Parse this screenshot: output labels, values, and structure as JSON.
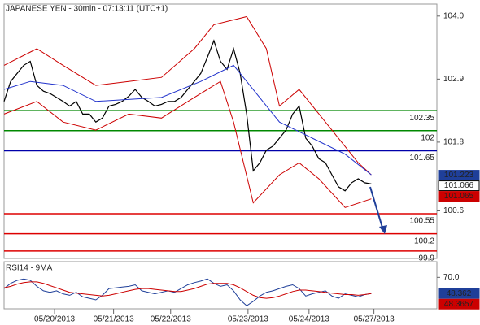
{
  "chart_data": [
    {
      "type": "line",
      "title": "JAPANESE YEN - 30min - 07:13:11 (UTC+1)",
      "x": [
        0,
        1,
        2,
        3,
        4,
        5,
        6,
        7,
        8,
        9,
        10,
        11,
        12,
        13,
        14,
        15,
        16,
        17,
        18,
        19,
        20,
        21,
        22,
        23,
        24,
        25,
        26,
        27,
        28,
        29,
        30,
        31,
        32,
        33,
        34,
        35,
        36,
        37,
        38,
        39,
        40,
        41,
        42,
        43,
        44,
        45,
        46,
        47,
        48,
        49,
        50,
        51,
        52,
        53,
        54,
        55,
        56
      ],
      "xlim": [
        0,
        66
      ],
      "xticks": [
        {
          "value": 7.7,
          "label": "05/20/2013"
        },
        {
          "value": 16.7,
          "label": "05/21/2013"
        },
        {
          "value": 25.4,
          "label": "05/22/2013"
        },
        {
          "value": 37.2,
          "label": "05/23/2013"
        },
        {
          "value": 46.5,
          "label": "05/24/2013"
        },
        {
          "value": 56.4,
          "label": "05/27/2013"
        }
      ],
      "ylim": [
        99.77,
        104.21
      ],
      "yticks": [
        {
          "value": 104,
          "label": "104.0"
        },
        102.9,
        101.8,
        100.6
      ],
      "series": [
        {
          "color": "#000000",
          "values": [
            102.51,
            102.86,
            103.0,
            103.14,
            103.21,
            102.79,
            102.69,
            102.65,
            102.58,
            102.51,
            102.43,
            102.51,
            102.29,
            102.29,
            102.15,
            102.22,
            102.43,
            102.46,
            102.51,
            102.6,
            102.72,
            102.58,
            102.51,
            102.43,
            102.46,
            102.51,
            102.51,
            102.58,
            102.72,
            102.86,
            103.0,
            103.28,
            103.57,
            103.21,
            103.07,
            103.43,
            103.0,
            102.29,
            101.3,
            101.44,
            101.66,
            101.73,
            101.87,
            102.01,
            102.29,
            102.43,
            101.87,
            101.73,
            101.51,
            101.44,
            101.23,
            101.02,
            100.95,
            101.09,
            101.16,
            101.09,
            101.07
          ]
        },
        {
          "color": "#cc0000",
          "x": [
            0,
            5,
            9,
            14,
            19,
            24,
            29,
            32,
            37,
            40,
            42,
            45,
            49,
            54,
            56
          ],
          "values": [
            103.14,
            103.43,
            103.14,
            102.79,
            102.86,
            102.93,
            103.43,
            103.85,
            103.99,
            103.43,
            102.43,
            102.72,
            102.15,
            101.44,
            101.23
          ]
        },
        {
          "color": "#cc0000",
          "x": [
            0,
            5,
            9,
            14,
            19,
            24,
            29,
            33,
            35,
            38,
            42,
            45,
            48,
            52,
            56
          ],
          "values": [
            102.29,
            102.51,
            102.15,
            102.01,
            102.29,
            102.22,
            102.58,
            102.86,
            102.15,
            100.74,
            101.23,
            101.44,
            101.16,
            100.66,
            100.81
          ]
        },
        {
          "color": "#2233cc",
          "x": [
            0,
            4,
            9,
            14,
            24,
            30,
            35,
            37,
            42,
            47,
            52,
            56
          ],
          "values": [
            102.72,
            102.86,
            102.79,
            102.51,
            102.58,
            102.86,
            103.14,
            102.86,
            102.15,
            101.87,
            101.59,
            101.23
          ]
        }
      ],
      "levels": [
        {
          "value": 102.35,
          "color": "#008800"
        },
        {
          "value": 102,
          "color": "#008800"
        },
        {
          "value": 101.65,
          "color": "#0000aa"
        },
        {
          "value": 100.55,
          "color": "#dd0000"
        },
        {
          "value": 100.2,
          "color": "#dd0000"
        },
        {
          "value": 99.9,
          "color": "#dd0000"
        }
      ],
      "tags": [
        {
          "value": 101.223,
          "color": "#1f3f99"
        },
        {
          "value": 101.066,
          "color": "#ffffff"
        },
        {
          "value": 101.065,
          "color": "#cc0000"
        }
      ]
    },
    {
      "type": "line",
      "title": "RSI14 - 9MA",
      "x": [
        0,
        1,
        2,
        3,
        4,
        5,
        6,
        7,
        8,
        9,
        10,
        11,
        12,
        13,
        14,
        15,
        16,
        17,
        18,
        19,
        20,
        21,
        22,
        23,
        24,
        25,
        26,
        27,
        28,
        29,
        30,
        31,
        32,
        33,
        34,
        35,
        36,
        37,
        38,
        39,
        40,
        41,
        42,
        43,
        44,
        45,
        46,
        47,
        48,
        49,
        50,
        51,
        52,
        53,
        54,
        55,
        56
      ],
      "xlim": [
        0,
        66
      ],
      "ylim": [
        28,
        91
      ],
      "yticks": [
        {
          "value": 70,
          "label": "70.0"
        }
      ],
      "series": [
        {
          "color": "#1f3f99",
          "values": [
            55,
            62,
            66,
            68,
            66,
            58,
            52,
            50,
            52,
            48,
            46,
            50,
            44,
            42,
            40,
            46,
            55,
            56,
            57,
            58,
            60,
            52,
            50,
            48,
            50,
            52,
            50,
            55,
            60,
            63,
            65,
            68,
            62,
            58,
            60,
            52,
            40,
            32,
            38,
            45,
            50,
            52,
            55,
            58,
            60,
            55,
            45,
            48,
            50,
            52,
            45,
            42,
            48,
            46,
            44,
            47,
            48.362
          ]
        },
        {
          "color": "#cc0000",
          "values": [
            56,
            58,
            61,
            63,
            64,
            64,
            62,
            59,
            56,
            53,
            50,
            49,
            48,
            47,
            46,
            45,
            46,
            48,
            50,
            52,
            54,
            55,
            55,
            54,
            53,
            52,
            51,
            51,
            53,
            55,
            58,
            61,
            62,
            62,
            62,
            60,
            56,
            51,
            46,
            43,
            42,
            43,
            45,
            48,
            51,
            53,
            53,
            52,
            51,
            50,
            49,
            48,
            47,
            47,
            46,
            47,
            48.3657
          ]
        }
      ],
      "tags": [
        {
          "value": 48.362,
          "color": "#1f3f99"
        },
        {
          "value": 48.3657,
          "color": "#cc0000"
        }
      ]
    }
  ]
}
